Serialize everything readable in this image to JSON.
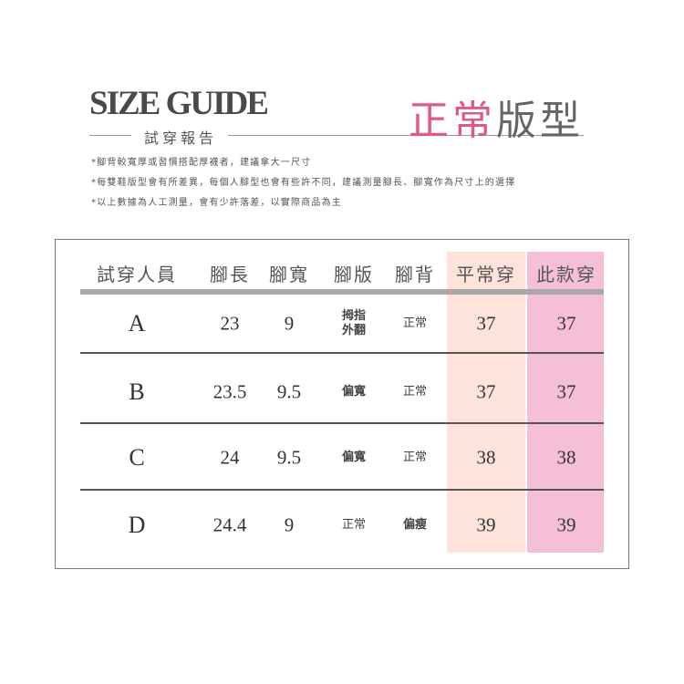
{
  "header": {
    "title": "SIZE GUIDE",
    "subtitle": "試穿報告",
    "fit_type_pink": "正常",
    "fit_type_gray": "版型"
  },
  "notes": [
    "*腳背較寬厚或習慣搭配厚襪者，建議拿大一尺寸",
    "*每雙鞋版型會有所差異，每個人腳型也會有些許不同，建議測量腳長、腳寬作為尺寸上的選擇",
    "*以上數據為人工測量，會有少許落差，以實際商品為主"
  ],
  "colors": {
    "accent": "#e05887",
    "usual_col": "#fde3da",
    "this_col": "#f5bfd5"
  },
  "table": {
    "headers": [
      "試穿人員",
      "腳長",
      "腳寬",
      "腳版",
      "腳背",
      "平常穿",
      "此款穿"
    ],
    "rows": [
      {
        "person": "A",
        "length": "23",
        "width": "9",
        "shape": "拇指外翻",
        "instep": "正常",
        "usual": "37",
        "this": "37"
      },
      {
        "person": "B",
        "length": "23.5",
        "width": "9.5",
        "shape": "偏寬",
        "instep": "正常",
        "usual": "37",
        "this": "37"
      },
      {
        "person": "C",
        "length": "24",
        "width": "9.5",
        "shape": "偏寬",
        "instep": "正常",
        "usual": "38",
        "this": "38"
      },
      {
        "person": "D",
        "length": "24.4",
        "width": "9",
        "shape": "正常",
        "instep": "偏瘦",
        "usual": "39",
        "this": "39"
      }
    ]
  }
}
